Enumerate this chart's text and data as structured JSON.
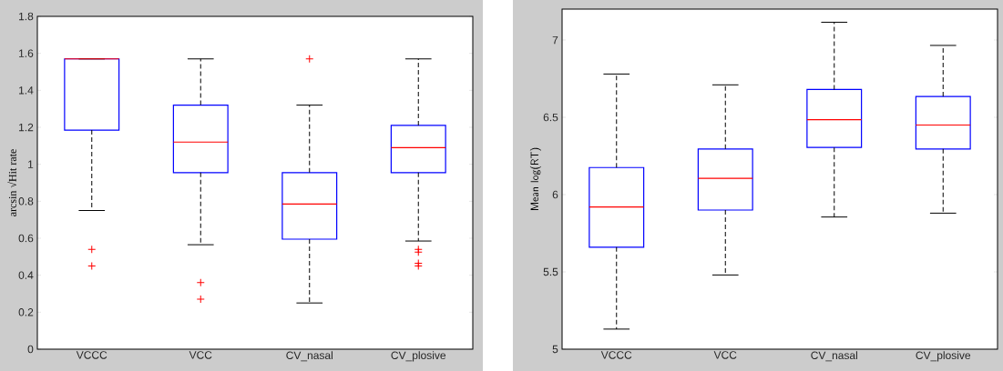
{
  "chart_data": [
    {
      "type": "box",
      "ylabel": "arcsin √Hit rate",
      "categories": [
        "VCCC",
        "VCC",
        "CV_nasal",
        "CV_plosive"
      ],
      "color": "#0000ff",
      "boxes": [
        {
          "low": 0.75,
          "q1": 1.185,
          "median": 1.57,
          "q3": 1.57,
          "high": 1.57,
          "outliers": [
            0.54,
            0.45
          ]
        },
        {
          "low": 0.565,
          "q1": 0.955,
          "median": 1.12,
          "q3": 1.32,
          "high": 1.57,
          "outliers": [
            0.36,
            0.27
          ]
        },
        {
          "low": 0.25,
          "q1": 0.595,
          "median": 0.785,
          "q3": 0.955,
          "high": 1.32,
          "outliers": [
            1.57
          ]
        },
        {
          "low": 0.585,
          "q1": 0.955,
          "median": 1.09,
          "q3": 1.21,
          "high": 1.57,
          "outliers": [
            0.54,
            0.525,
            0.465,
            0.45
          ]
        }
      ],
      "ylim": [
        0,
        1.8
      ],
      "yticks": [
        0,
        0.2,
        0.4,
        0.6,
        0.8,
        1,
        1.2,
        1.4,
        1.6,
        1.8
      ]
    },
    {
      "type": "box",
      "ylabel": "Mean log(RT)",
      "categories": [
        "VCCC",
        "VCC",
        "CV_nasal",
        "CV_plosive"
      ],
      "color": "#0000ff",
      "boxes": [
        {
          "low": 5.13,
          "q1": 5.66,
          "median": 5.92,
          "q3": 6.175,
          "high": 6.78
        },
        {
          "low": 5.48,
          "q1": 5.9,
          "median": 6.105,
          "q3": 6.295,
          "high": 6.71
        },
        {
          "low": 5.855,
          "q1": 6.305,
          "median": 6.485,
          "q3": 6.68,
          "high": 7.115
        },
        {
          "low": 5.88,
          "q1": 6.295,
          "median": 6.45,
          "q3": 6.635,
          "high": 6.965
        }
      ],
      "ylim": [
        5,
        7.2
      ],
      "yticks": [
        5,
        5.5,
        6,
        6.5,
        7
      ]
    }
  ]
}
